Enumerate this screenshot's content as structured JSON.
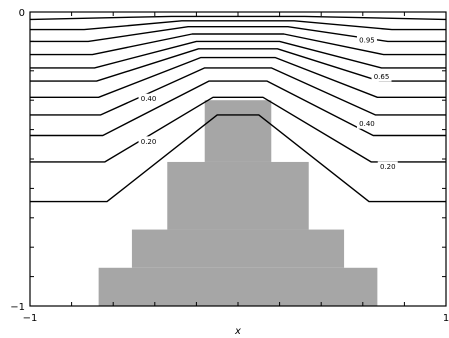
{
  "chart_data": {
    "type": "contour",
    "xlabel": "x",
    "ylabel": "",
    "xlim": [
      -1,
      1
    ],
    "ylim": [
      -1,
      0
    ],
    "x_ticks": [
      {
        "value": -1,
        "label": "−1"
      },
      {
        "value": 1,
        "label": "1"
      }
    ],
    "y_ticks": [
      {
        "value": 0,
        "label": "0"
      },
      {
        "value": -1,
        "label": "−1"
      }
    ],
    "minor_ticks_x": [
      -0.8,
      -0.6,
      -0.4,
      -0.2,
      0,
      0.2,
      0.4,
      0.6,
      0.8
    ],
    "minor_ticks_y": [
      -0.1,
      -0.2,
      -0.3,
      -0.4,
      -0.5,
      -0.6,
      -0.7,
      -0.8,
      -0.9
    ],
    "obstacle": [
      {
        "x0": -0.16,
        "x1": 0.16,
        "y0": -1,
        "y1": -0.78
      },
      {
        "x0": -0.34,
        "x1": 0.34,
        "y0": -1,
        "y1": -0.25
      },
      {
        "x0": -0.51,
        "x1": 0.51,
        "y0": -1,
        "y1": -0.25
      },
      {
        "x0": -0.67,
        "x1": 0.67,
        "y0": -1,
        "y1": -0.25
      }
    ],
    "obstacle_tiers": [
      {
        "x0": -0.67,
        "x1": 0.67,
        "y0": -1,
        "y1": -0.87
      },
      {
        "x0": -0.51,
        "x1": 0.51,
        "y0": -0.87,
        "y1": -0.74
      },
      {
        "x0": -0.34,
        "x1": 0.34,
        "y0": -0.74,
        "y1": -0.51
      },
      {
        "x0": -0.16,
        "x1": 0.16,
        "y0": -0.51,
        "y1": -0.3
      }
    ],
    "contours": [
      {
        "y_far": -0.025,
        "y_top": -0.015,
        "shoulder_x": 0.99,
        "top_half": 0.32
      },
      {
        "y_far": -0.06,
        "y_top": -0.03,
        "shoulder_x": 0.74,
        "top_half": 0.27
      },
      {
        "y_far": -0.1,
        "y_top": -0.05,
        "shoulder_x": 0.72,
        "top_half": 0.24
      },
      {
        "y_far": -0.145,
        "y_top": -0.075,
        "shoulder_x": 0.7,
        "top_half": 0.22
      },
      {
        "y_far": -0.19,
        "y_top": -0.1,
        "shoulder_x": 0.69,
        "top_half": 0.2
      },
      {
        "y_far": -0.235,
        "y_top": -0.125,
        "shoulder_x": 0.68,
        "top_half": 0.19
      },
      {
        "y_far": -0.29,
        "y_top": -0.155,
        "shoulder_x": 0.67,
        "top_half": 0.18
      },
      {
        "y_far": -0.35,
        "y_top": -0.19,
        "shoulder_x": 0.66,
        "top_half": 0.16
      },
      {
        "y_far": -0.42,
        "y_top": -0.235,
        "shoulder_x": 0.65,
        "top_half": 0.14
      },
      {
        "y_far": -0.51,
        "y_top": -0.29,
        "shoulder_x": 0.64,
        "top_half": 0.12
      },
      {
        "y_far": -0.645,
        "y_top": -0.35,
        "shoulder_x": 0.63,
        "top_half": 0.1
      }
    ],
    "contour_labels": [
      {
        "text": "0.95",
        "x": 0.62,
        "y": -0.095
      },
      {
        "text": "0.65",
        "x": 0.69,
        "y": -0.22
      },
      {
        "text": "0.40",
        "x": 0.62,
        "y": -0.38
      },
      {
        "text": "0.40",
        "x": -0.43,
        "y": -0.295
      },
      {
        "text": "0.20",
        "x": -0.43,
        "y": -0.44
      },
      {
        "text": "0.20",
        "x": 0.72,
        "y": -0.525
      }
    ]
  }
}
